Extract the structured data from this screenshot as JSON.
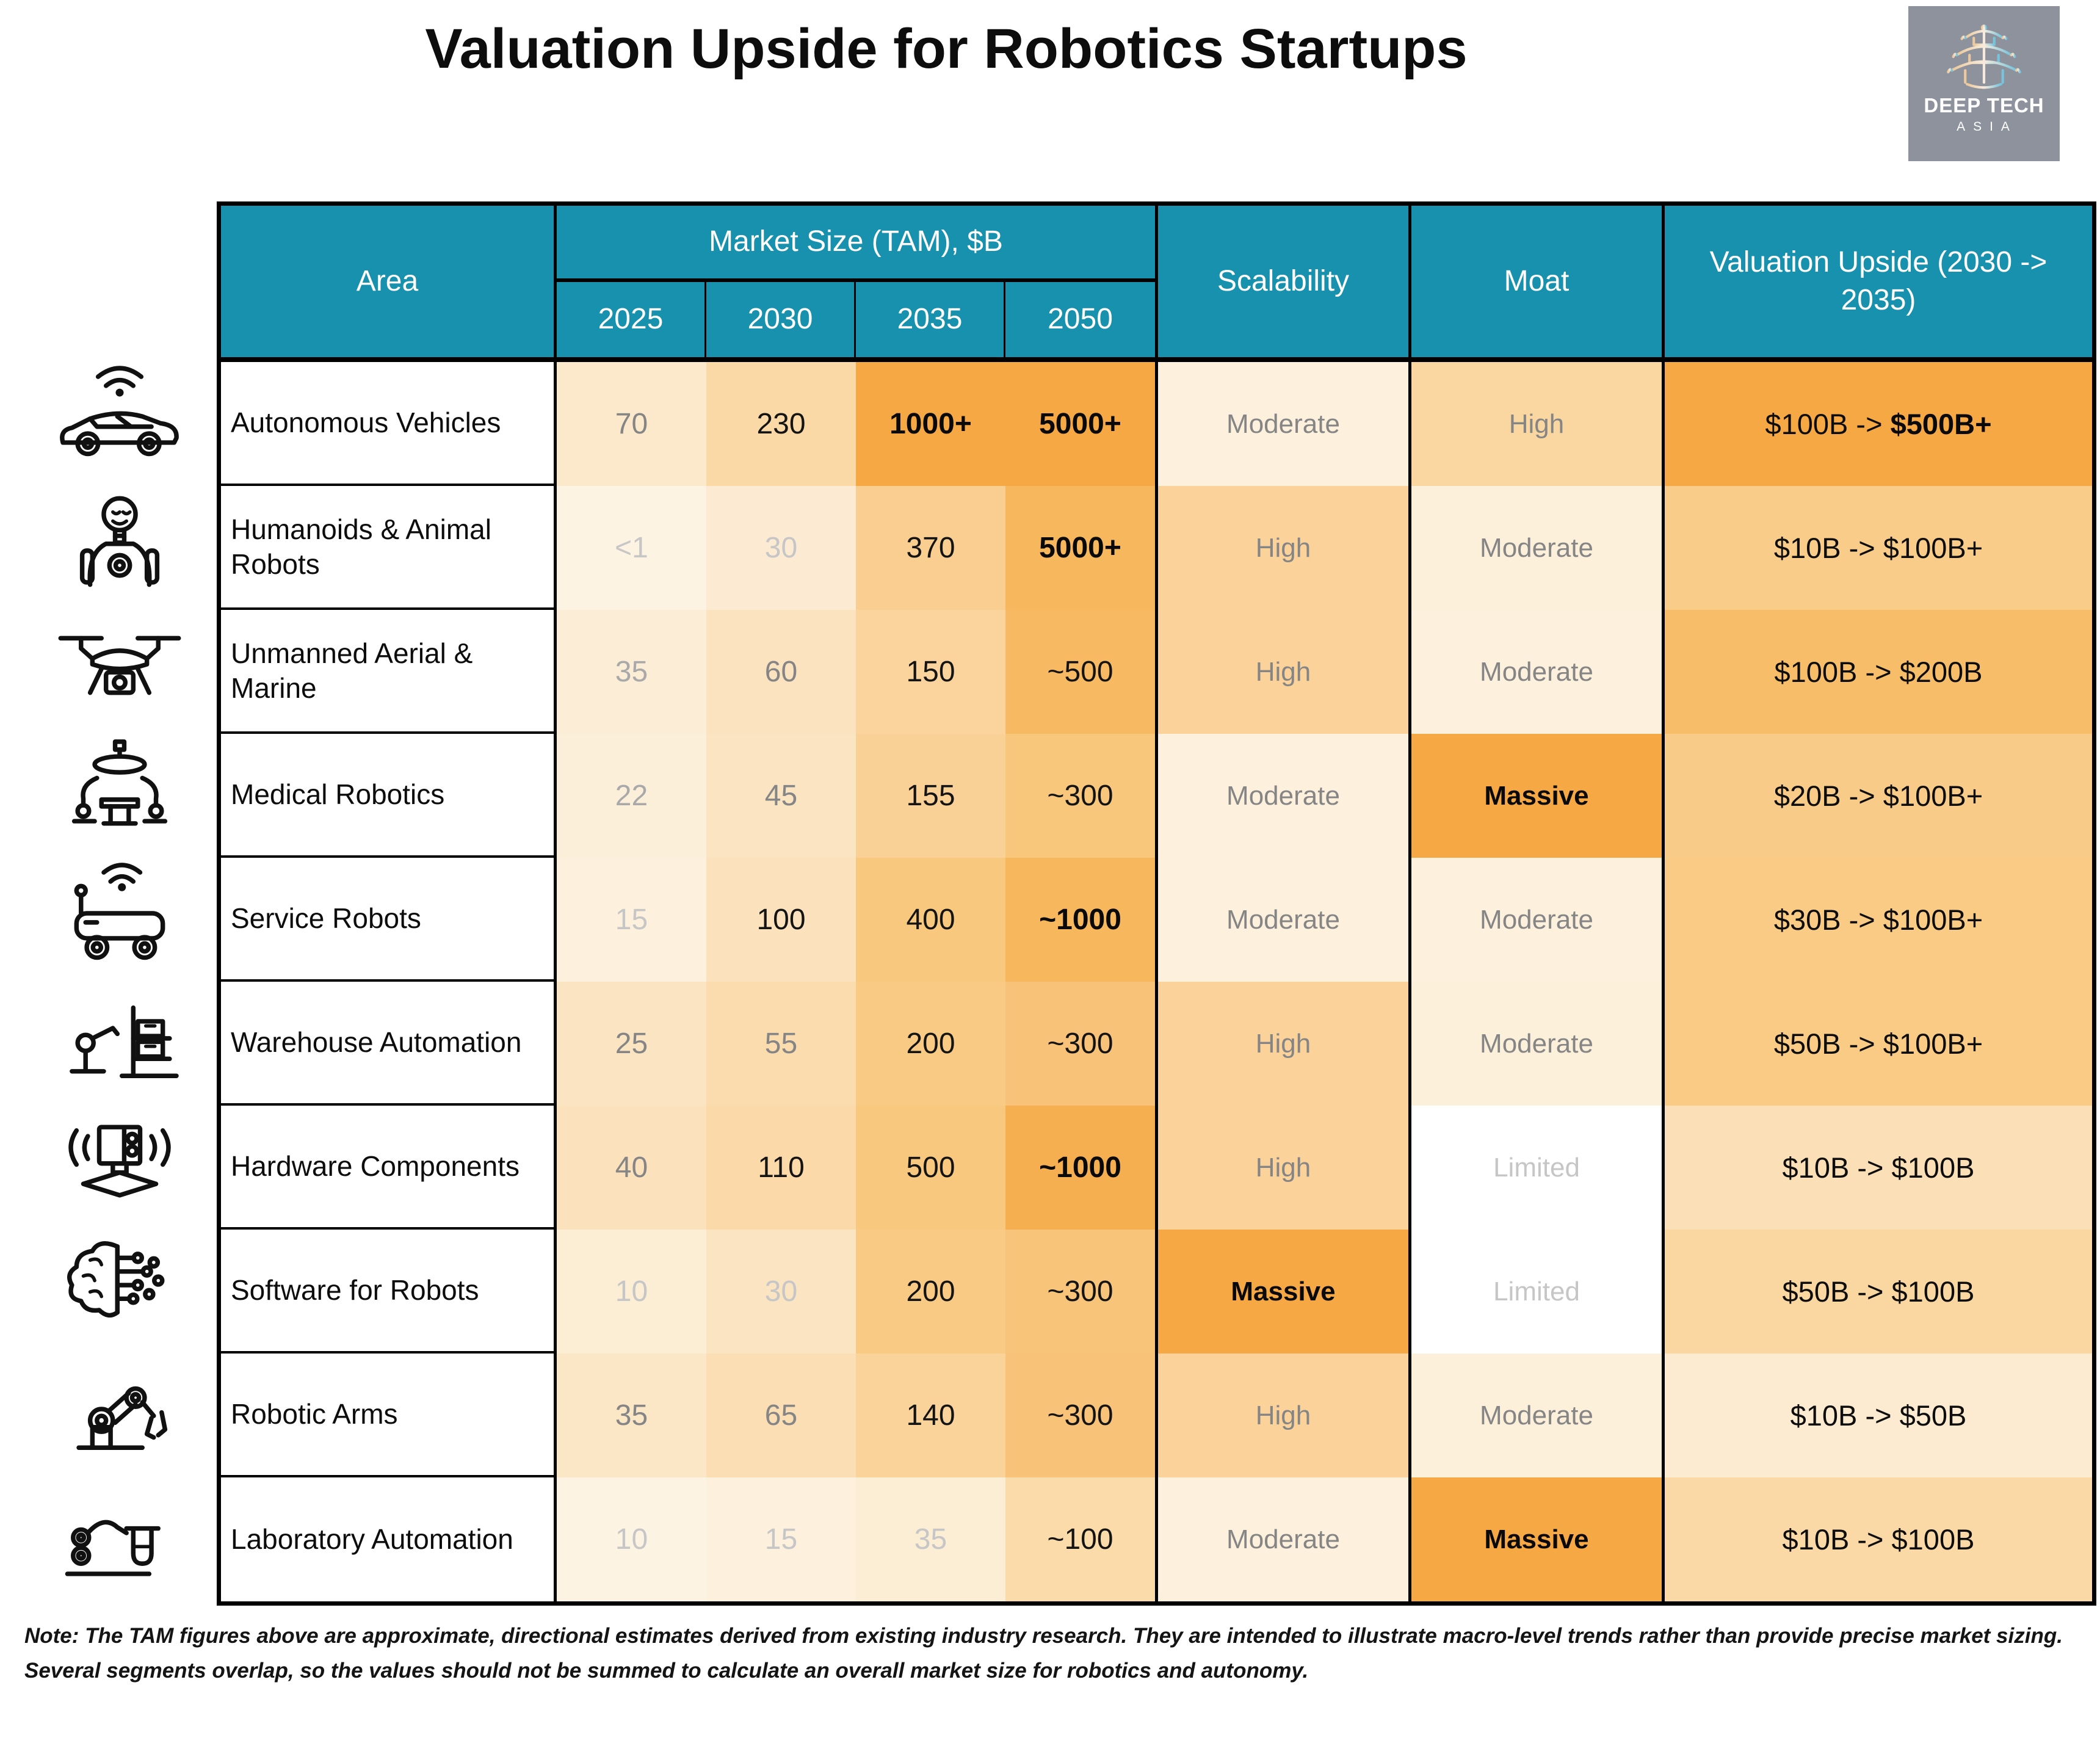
{
  "title": "Valuation Upside for Robotics Startups",
  "logo": {
    "line1": "DEEP TECH",
    "line2": "ASIA",
    "bg": "#8d929c",
    "pagoda_icon": "pagoda-icon"
  },
  "colors": {
    "header_bg": "#1791ad",
    "header_text": "#ffffff",
    "accent_strong": "#f5a843",
    "border": "#000000"
  },
  "table": {
    "headers": {
      "area": "Area",
      "market_group": "Market Size (TAM), $B",
      "years": [
        "2025",
        "2030",
        "2035",
        "2050"
      ],
      "scalability": "Scalability",
      "moat": "Moat",
      "valuation": "Valuation Upside (2030 -> 2035)"
    },
    "rows": [
      {
        "icon": "autonomous-vehicle-icon",
        "area": "Autonomous Vehicles",
        "tam": [
          {
            "text": "70",
            "bg": "#fce9cb",
            "style": "gray"
          },
          {
            "text": "230",
            "bg": "#fad9a6",
            "style": "black"
          },
          {
            "text": "1000+",
            "bg": "#f5a843",
            "style": "bold"
          },
          {
            "text": "5000+",
            "bg": "#f5a843",
            "style": "bold"
          }
        ],
        "scalability": {
          "text": "Moderate",
          "bg": "#fdf0dc",
          "style": "gray"
        },
        "moat": {
          "text": "High",
          "bg": "#fad7a0",
          "style": "gray"
        },
        "valuation": {
          "bg": "#f5a843",
          "parts": [
            {
              "text": "$100B -> ",
              "bold": false
            },
            {
              "text": "$500B+",
              "bold": true
            }
          ]
        }
      },
      {
        "icon": "humanoid-robot-icon",
        "area": "Humanoids & Animal Robots",
        "tam": [
          {
            "text": "<1",
            "bg": "#fdf3e3",
            "style": "xlight"
          },
          {
            "text": "30",
            "bg": "#fcebd2",
            "style": "xlight"
          },
          {
            "text": "370",
            "bg": "#f9ce90",
            "style": "black"
          },
          {
            "text": "5000+",
            "bg": "#f7b75d",
            "style": "bold"
          }
        ],
        "scalability": {
          "text": "High",
          "bg": "#fad29a",
          "style": "gray"
        },
        "moat": {
          "text": "Moderate",
          "bg": "#fdf0db",
          "style": "gray"
        },
        "valuation": {
          "bg": "#f9cc8a",
          "parts": [
            {
              "text": "$10B -> $100B+",
              "bold": false
            }
          ]
        }
      },
      {
        "icon": "drone-icon",
        "area": "Unmanned Aerial & Marine",
        "tam": [
          {
            "text": "35",
            "bg": "#fcedd6",
            "style": "lgray"
          },
          {
            "text": "60",
            "bg": "#fbe3bf",
            "style": "gray"
          },
          {
            "text": "150",
            "bg": "#fad49c",
            "style": "black"
          },
          {
            "text": "~500",
            "bg": "#f7ba62",
            "style": "black"
          }
        ],
        "scalability": {
          "text": "High",
          "bg": "#fad29a",
          "style": "gray"
        },
        "moat": {
          "text": "Moderate",
          "bg": "#fdf0dc",
          "style": "gray"
        },
        "valuation": {
          "bg": "#f7bd68",
          "parts": [
            {
              "text": "$100B -> $200B",
              "bold": false
            }
          ]
        }
      },
      {
        "icon": "medical-robot-icon",
        "area": "Medical Robotics",
        "tam": [
          {
            "text": "22",
            "bg": "#fcefda",
            "style": "lgray"
          },
          {
            "text": "45",
            "bg": "#fbe4c2",
            "style": "gray"
          },
          {
            "text": "155",
            "bg": "#f9d096",
            "style": "black"
          },
          {
            "text": "~300",
            "bg": "#f8c77c",
            "style": "black"
          }
        ],
        "scalability": {
          "text": "Moderate",
          "bg": "#fdf0dc",
          "style": "gray"
        },
        "moat": {
          "text": "Massive",
          "bg": "#f5a843",
          "style": "bold"
        },
        "valuation": {
          "bg": "#f9cb88",
          "parts": [
            {
              "text": "$20B -> $100B+",
              "bold": false
            }
          ]
        }
      },
      {
        "icon": "service-robot-icon",
        "area": "Service Robots",
        "tam": [
          {
            "text": "15",
            "bg": "#fdf1de",
            "style": "xlight"
          },
          {
            "text": "100",
            "bg": "#fbe2bc",
            "style": "black"
          },
          {
            "text": "400",
            "bg": "#f8c87e",
            "style": "black"
          },
          {
            "text": "~1000",
            "bg": "#f7b75d",
            "style": "bold"
          }
        ],
        "scalability": {
          "text": "Moderate",
          "bg": "#fdf0dc",
          "style": "gray"
        },
        "moat": {
          "text": "Moderate",
          "bg": "#fdf0dc",
          "style": "gray"
        },
        "valuation": {
          "bg": "#f9cb85",
          "parts": [
            {
              "text": "$30B -> $100B+",
              "bold": false
            }
          ]
        }
      },
      {
        "icon": "warehouse-automation-icon",
        "area": "Warehouse Automation",
        "tam": [
          {
            "text": "25",
            "bg": "#fbe4c2",
            "style": "gray"
          },
          {
            "text": "55",
            "bg": "#fbdcae",
            "style": "gray"
          },
          {
            "text": "200",
            "bg": "#f9ca83",
            "style": "black"
          },
          {
            "text": "~300",
            "bg": "#f8c278",
            "style": "black"
          }
        ],
        "scalability": {
          "text": "High",
          "bg": "#fad29a",
          "style": "gray"
        },
        "moat": {
          "text": "Moderate",
          "bg": "#fdf0db",
          "style": "gray"
        },
        "valuation": {
          "bg": "#f9cb85",
          "parts": [
            {
              "text": "$50B -> $100B+",
              "bold": false
            }
          ]
        }
      },
      {
        "icon": "hardware-components-icon",
        "area": "Hardware Components",
        "tam": [
          {
            "text": "40",
            "bg": "#fbe2bc",
            "style": "gray"
          },
          {
            "text": "110",
            "bg": "#fbd9a8",
            "style": "black"
          },
          {
            "text": "500",
            "bg": "#f8c87e",
            "style": "black"
          },
          {
            "text": "~1000",
            "bg": "#f6af50",
            "style": "bold"
          }
        ],
        "scalability": {
          "text": "High",
          "bg": "#fad29a",
          "style": "gray"
        },
        "moat": {
          "text": "Limited",
          "bg": "#ffffff",
          "style": "xlight"
        },
        "valuation": {
          "bg": "#fbdfb6",
          "parts": [
            {
              "text": "$10B -> $100B",
              "bold": false
            }
          ]
        }
      },
      {
        "icon": "robot-software-icon",
        "area": "Software for Robots",
        "tam": [
          {
            "text": "10",
            "bg": "#fcedd5",
            "style": "xlight"
          },
          {
            "text": "30",
            "bg": "#fbe4c2",
            "style": "xlight"
          },
          {
            "text": "200",
            "bg": "#f9ca83",
            "style": "black"
          },
          {
            "text": "~300",
            "bg": "#f8c47a",
            "style": "black"
          }
        ],
        "scalability": {
          "text": "Massive",
          "bg": "#f5a843",
          "style": "bold"
        },
        "moat": {
          "text": "Limited",
          "bg": "#ffffff",
          "style": "xlight"
        },
        "valuation": {
          "bg": "#fad7a1",
          "parts": [
            {
              "text": "$50B -> $100B",
              "bold": false
            }
          ]
        }
      },
      {
        "icon": "robotic-arm-icon",
        "area": "Robotic Arms",
        "tam": [
          {
            "text": "35",
            "bg": "#fbe6c6",
            "style": "gray"
          },
          {
            "text": "65",
            "bg": "#fbdeb3",
            "style": "gray"
          },
          {
            "text": "140",
            "bg": "#fad39b",
            "style": "black"
          },
          {
            "text": "~300",
            "bg": "#f8c278",
            "style": "black"
          }
        ],
        "scalability": {
          "text": "High",
          "bg": "#fad29a",
          "style": "gray"
        },
        "moat": {
          "text": "Moderate",
          "bg": "#fdf0db",
          "style": "gray"
        },
        "valuation": {
          "bg": "#fcebd0",
          "parts": [
            {
              "text": "$10B -> $50B",
              "bold": false
            }
          ]
        }
      },
      {
        "icon": "laboratory-automation-icon",
        "area": "Laboratory Automation",
        "tam": [
          {
            "text": "10",
            "bg": "#fdf3e2",
            "style": "xlight"
          },
          {
            "text": "15",
            "bg": "#fdf1de",
            "style": "xlight"
          },
          {
            "text": "35",
            "bg": "#fcedd5",
            "style": "xlight"
          },
          {
            "text": "~100",
            "bg": "#fadba9",
            "style": "black"
          }
        ],
        "scalability": {
          "text": "Moderate",
          "bg": "#fdf0dc",
          "style": "gray"
        },
        "moat": {
          "text": "Massive",
          "bg": "#f5a843",
          "style": "bold"
        },
        "valuation": {
          "bg": "#fad9a6",
          "parts": [
            {
              "text": "$10B -> $100B",
              "bold": false
            }
          ]
        }
      }
    ]
  },
  "note": "Note: The TAM figures above are approximate, directional estimates derived from existing industry research. They are intended to illustrate macro-level trends rather than provide precise market sizing. Several segments overlap, so the values should not be summed to calculate an overall market size for robotics and autonomy.",
  "chart_data": {
    "type": "table",
    "title": "Valuation Upside for Robotics Startups",
    "columns": [
      "Area",
      "TAM 2025 ($B)",
      "TAM 2030 ($B)",
      "TAM 2035 ($B)",
      "TAM 2050 ($B)",
      "Scalability",
      "Moat",
      "Valuation Upside (2030 -> 2035)"
    ],
    "rows": [
      [
        "Autonomous Vehicles",
        "70",
        "230",
        "1000+",
        "5000+",
        "Moderate",
        "High",
        "$100B -> $500B+"
      ],
      [
        "Humanoids & Animal Robots",
        "<1",
        "30",
        "370",
        "5000+",
        "High",
        "Moderate",
        "$10B -> $100B+"
      ],
      [
        "Unmanned Aerial & Marine",
        "35",
        "60",
        "150",
        "~500",
        "High",
        "Moderate",
        "$100B -> $200B"
      ],
      [
        "Medical Robotics",
        "22",
        "45",
        "155",
        "~300",
        "Moderate",
        "Massive",
        "$20B -> $100B+"
      ],
      [
        "Service Robots",
        "15",
        "100",
        "400",
        "~1000",
        "Moderate",
        "Moderate",
        "$30B -> $100B+"
      ],
      [
        "Warehouse Automation",
        "25",
        "55",
        "200",
        "~300",
        "High",
        "Moderate",
        "$50B -> $100B+"
      ],
      [
        "Hardware Components",
        "40",
        "110",
        "500",
        "~1000",
        "High",
        "Limited",
        "$10B -> $100B"
      ],
      [
        "Software for Robots",
        "10",
        "30",
        "200",
        "~300",
        "Massive",
        "Limited",
        "$50B -> $100B"
      ],
      [
        "Robotic Arms",
        "35",
        "65",
        "140",
        "~300",
        "High",
        "Moderate",
        "$10B -> $50B"
      ],
      [
        "Laboratory Automation",
        "10",
        "15",
        "35",
        "~100",
        "Moderate",
        "Massive",
        "$10B -> $100B"
      ]
    ]
  }
}
